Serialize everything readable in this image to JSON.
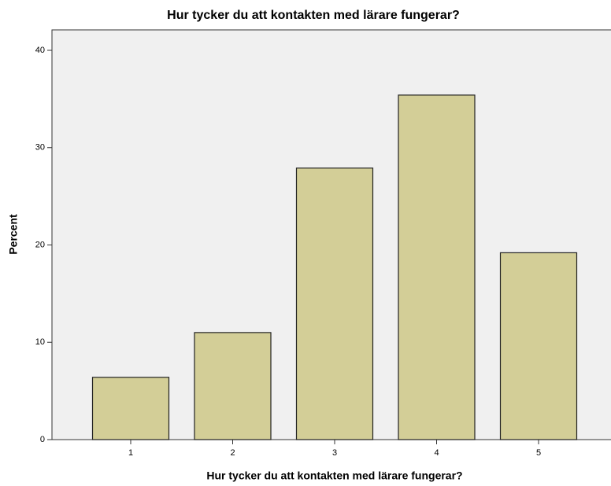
{
  "chart_data": {
    "type": "bar",
    "title": "Hur tycker du att kontakten med lärare fungerar?",
    "x_label": "Hur tycker du att kontakten med lärare fungerar?",
    "y_label": "Percent",
    "categories": [
      "1",
      "2",
      "3",
      "4",
      "5"
    ],
    "values": [
      6.4,
      11.0,
      27.9,
      35.4,
      19.2
    ],
    "color": "#d3ce97",
    "ylim": [
      0,
      42.1
    ],
    "yticks": [
      0,
      10,
      20,
      30,
      40
    ],
    "grid": false
  }
}
